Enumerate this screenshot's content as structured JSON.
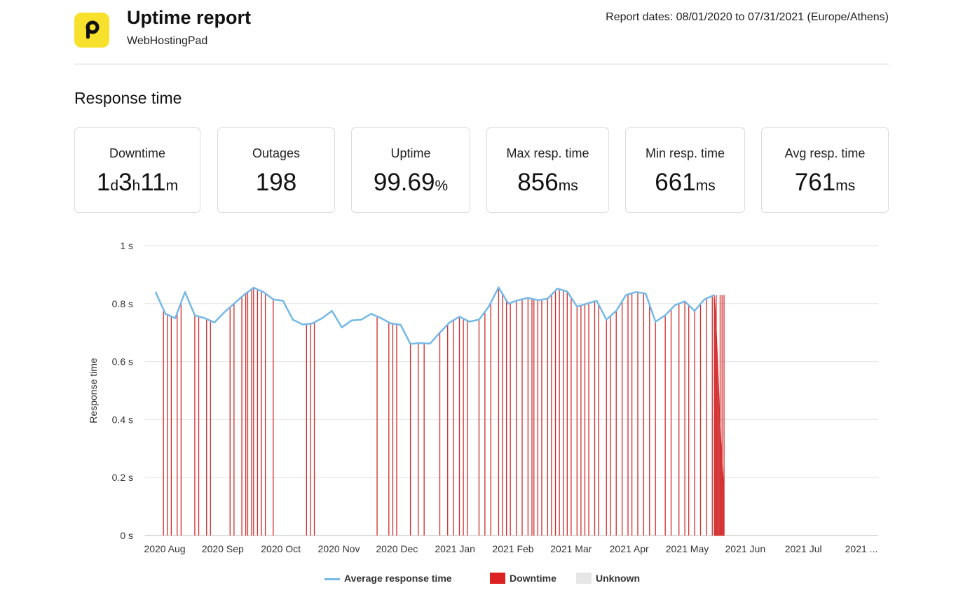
{
  "header": {
    "title": "Uptime report",
    "subtitle": "WebHostingPad",
    "report_dates": "Report dates: 08/01/2020 to 07/31/2021 (Europe/Athens)",
    "logo_color": "#f7e12d",
    "logo_icon": "p-letter-icon"
  },
  "section_title": "Response time",
  "stats": [
    {
      "label": "Downtime",
      "parts": [
        {
          "v": "1",
          "u": "d"
        },
        {
          "v": "3",
          "u": "h"
        },
        {
          "v": "11",
          "u": "m"
        }
      ]
    },
    {
      "label": "Outages",
      "parts": [
        {
          "v": "198",
          "u": ""
        }
      ]
    },
    {
      "label": "Uptime",
      "parts": [
        {
          "v": "99.69",
          "u": "%"
        }
      ]
    },
    {
      "label": "Max resp. time",
      "parts": [
        {
          "v": "856",
          "u": "ms"
        }
      ]
    },
    {
      "label": "Min resp. time",
      "parts": [
        {
          "v": "661",
          "u": "ms"
        }
      ]
    },
    {
      "label": "Avg resp. time",
      "parts": [
        {
          "v": "761",
          "u": "ms"
        }
      ]
    }
  ],
  "chart_data": {
    "type": "line",
    "ylabel": "Response time",
    "y_ticks": [
      "0 s",
      "0.2 s",
      "0.4 s",
      "0.6 s",
      "0.8 s",
      "1 s"
    ],
    "ylim": [
      0,
      1
    ],
    "y_unit": "s",
    "grid": true,
    "x_tick_labels": [
      "2020 Aug",
      "2020 Sep",
      "2020 Oct",
      "2020 Nov",
      "2020 Dec",
      "2021 Jan",
      "2021 Feb",
      "2021 Mar",
      "2021 Apr",
      "2021 May",
      "2021 Jun",
      "2021 Jul",
      "2021 ..."
    ],
    "x_range": [
      "2020-08-01",
      "2021-07-31"
    ],
    "series": [
      {
        "name": "Average response time",
        "color": "#74b9e7",
        "points": [
          [
            "2020-08-01",
            0.84
          ],
          [
            "2020-08-06",
            0.765
          ],
          [
            "2020-08-11",
            0.75
          ],
          [
            "2020-08-16",
            0.84
          ],
          [
            "2020-08-21",
            0.76
          ],
          [
            "2020-08-26",
            0.75
          ],
          [
            "2020-08-31",
            0.735
          ],
          [
            "2020-09-05",
            0.77
          ],
          [
            "2020-09-10",
            0.8
          ],
          [
            "2020-09-15",
            0.83
          ],
          [
            "2020-09-20",
            0.855
          ],
          [
            "2020-09-25",
            0.84
          ],
          [
            "2020-09-30",
            0.815
          ],
          [
            "2020-10-05",
            0.81
          ],
          [
            "2020-10-10",
            0.745
          ],
          [
            "2020-10-15",
            0.728
          ],
          [
            "2020-10-20",
            0.732
          ],
          [
            "2020-10-25",
            0.75
          ],
          [
            "2020-10-30",
            0.775
          ],
          [
            "2020-11-04",
            0.718
          ],
          [
            "2020-11-09",
            0.742
          ],
          [
            "2020-11-14",
            0.745
          ],
          [
            "2020-11-19",
            0.765
          ],
          [
            "2020-11-24",
            0.75
          ],
          [
            "2020-11-29",
            0.732
          ],
          [
            "2020-12-04",
            0.727
          ],
          [
            "2020-12-09",
            0.661
          ],
          [
            "2020-12-14",
            0.664
          ],
          [
            "2020-12-19",
            0.662
          ],
          [
            "2020-12-24",
            0.7
          ],
          [
            "2020-12-29",
            0.735
          ],
          [
            "2021-01-03",
            0.755
          ],
          [
            "2021-01-08",
            0.738
          ],
          [
            "2021-01-13",
            0.745
          ],
          [
            "2021-01-18",
            0.79
          ],
          [
            "2021-01-23",
            0.856
          ],
          [
            "2021-01-28",
            0.8
          ],
          [
            "2021-02-02",
            0.812
          ],
          [
            "2021-02-07",
            0.82
          ],
          [
            "2021-02-12",
            0.812
          ],
          [
            "2021-02-17",
            0.817
          ],
          [
            "2021-02-22",
            0.852
          ],
          [
            "2021-02-27",
            0.842
          ],
          [
            "2021-03-04",
            0.79
          ],
          [
            "2021-03-09",
            0.8
          ],
          [
            "2021-03-14",
            0.81
          ],
          [
            "2021-03-19",
            0.745
          ],
          [
            "2021-03-24",
            0.775
          ],
          [
            "2021-03-29",
            0.83
          ],
          [
            "2021-04-03",
            0.84
          ],
          [
            "2021-04-08",
            0.835
          ],
          [
            "2021-04-13",
            0.738
          ],
          [
            "2021-04-18",
            0.76
          ],
          [
            "2021-04-23",
            0.795
          ],
          [
            "2021-04-28",
            0.808
          ],
          [
            "2021-05-03",
            0.775
          ],
          [
            "2021-05-08",
            0.815
          ],
          [
            "2021-05-13",
            0.83
          ]
        ]
      }
    ],
    "legend": [
      {
        "label": "Average response time",
        "color": "#74b9e7",
        "kind": "line"
      },
      {
        "label": "Downtime",
        "color": "#dd2222",
        "kind": "box"
      },
      {
        "label": "Unknown",
        "color": "#e6e6e6",
        "kind": "box"
      }
    ],
    "downtime_dates": [
      "2020-08-05",
      "2020-08-07",
      "2020-08-09",
      "2020-08-12",
      "2020-08-14",
      "2020-08-21",
      "2020-08-23",
      "2020-08-27",
      "2020-08-29",
      "2020-09-08",
      "2020-09-10",
      "2020-09-14",
      "2020-09-16",
      "2020-09-17",
      "2020-09-19",
      "2020-09-20",
      "2020-09-22",
      "2020-09-24",
      "2020-09-26",
      "2020-09-30",
      "2020-10-17",
      "2020-10-19",
      "2020-10-21",
      "2020-11-22",
      "2020-11-28",
      "2020-11-30",
      "2020-12-02",
      "2020-12-09",
      "2020-12-13",
      "2020-12-16",
      "2020-12-24",
      "2020-12-28",
      "2020-12-31",
      "2021-01-03",
      "2021-01-05",
      "2021-01-07",
      "2021-01-13",
      "2021-01-16",
      "2021-01-19",
      "2021-01-23",
      "2021-01-25",
      "2021-01-27",
      "2021-01-29",
      "2021-02-01",
      "2021-02-04",
      "2021-02-07",
      "2021-02-09",
      "2021-02-10",
      "2021-02-12",
      "2021-02-14",
      "2021-02-17",
      "2021-02-19",
      "2021-02-21",
      "2021-02-23",
      "2021-02-25",
      "2021-02-27",
      "2021-03-01",
      "2021-03-04",
      "2021-03-06",
      "2021-03-08",
      "2021-03-10",
      "2021-03-13",
      "2021-03-15",
      "2021-03-19",
      "2021-03-21",
      "2021-03-24",
      "2021-03-27",
      "2021-03-30",
      "2021-04-01",
      "2021-04-04",
      "2021-04-07",
      "2021-04-10",
      "2021-04-13",
      "2021-04-18",
      "2021-04-21",
      "2021-04-25",
      "2021-04-28",
      "2021-04-30",
      "2021-05-03",
      "2021-05-06",
      "2021-05-09",
      "2021-05-12",
      "2021-05-14",
      "2021-05-16",
      "2021-05-17",
      "2021-05-18"
    ],
    "downtime_decline": [
      [
        "2021-05-13",
        0.83
      ],
      [
        "2021-05-14",
        0.72
      ],
      [
        "2021-05-15",
        0.55
      ],
      [
        "2021-05-16",
        0.38
      ],
      [
        "2021-05-17",
        0.25
      ],
      [
        "2021-05-18",
        0.16
      ],
      [
        "2021-05-18",
        0.0
      ]
    ]
  }
}
